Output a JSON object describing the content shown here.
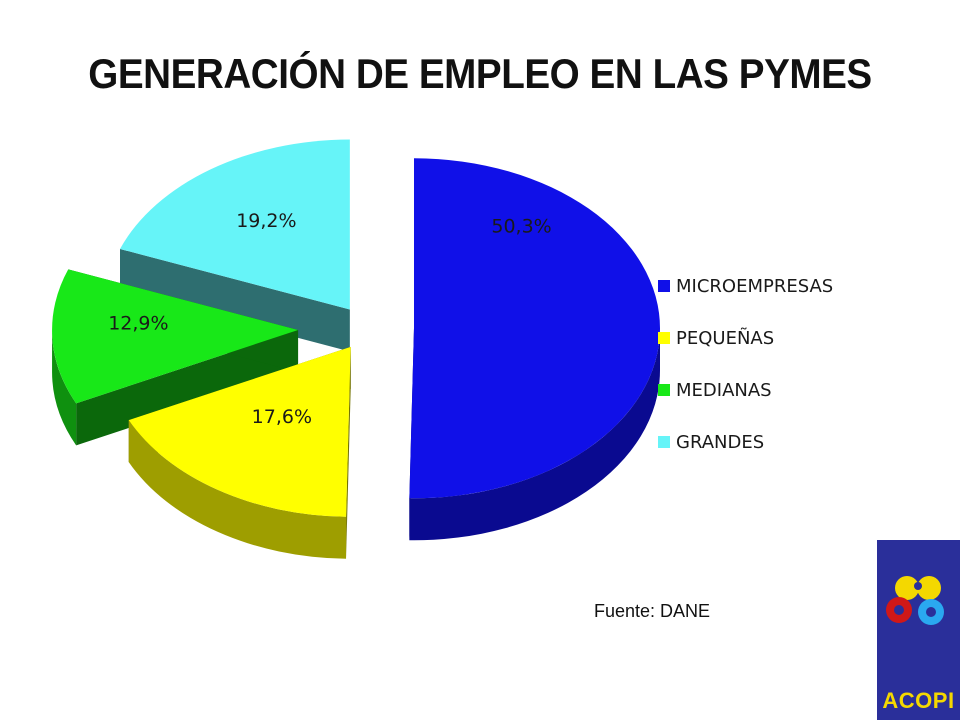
{
  "title": "GENERACIÓN DE EMPLEO EN LAS PYMES",
  "chart_data": {
    "type": "pie",
    "title": "",
    "categories": [
      "MICROEMPRESAS",
      "PEQUEÑAS",
      "MEDIANAS",
      "GRANDES"
    ],
    "values": [
      50.3,
      17.6,
      12.9,
      19.2
    ],
    "labels": [
      "50,3%",
      "17,6%",
      "12,9%",
      "19,2%"
    ],
    "colors": [
      "#1010e8",
      "#ffff00",
      "#18e818",
      "#66f4f8"
    ],
    "exploded": true,
    "three_d": true,
    "legend": {
      "position": "right",
      "entries": [
        "MICROEMPRESAS",
        "PEQUEÑAS",
        "MEDIANAS",
        "GRANDES"
      ]
    }
  },
  "source_note": "Fuente: DANE",
  "logo": {
    "text": "ACOPI",
    "background": "#2a2f9a",
    "text_color": "#f4d800"
  }
}
